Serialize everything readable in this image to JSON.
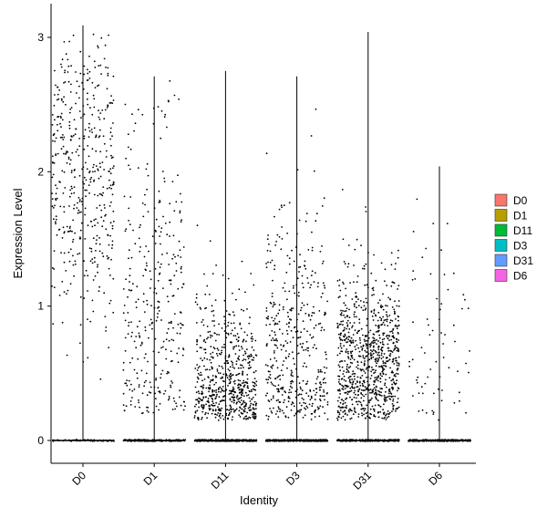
{
  "chart_data": {
    "type": "scatter",
    "subtype": "violin-jitter",
    "title": "",
    "xlabel": "Identity",
    "ylabel": "Expression Level",
    "categories": [
      "D0",
      "D1",
      "D11",
      "D3",
      "D31",
      "D6"
    ],
    "ylim": [
      -0.2,
      3.15
    ],
    "yticks": [
      0,
      1,
      2,
      3
    ],
    "grid": false,
    "legend": {
      "placement": "right",
      "entries": [
        {
          "label": "D0",
          "color": "#F8766D"
        },
        {
          "label": "D1",
          "color": "#B79F00"
        },
        {
          "label": "D11",
          "color": "#00BA38"
        },
        {
          "label": "D3",
          "color": "#00BFC4"
        },
        {
          "label": "D31",
          "color": "#619CFF"
        },
        {
          "label": "D6",
          "color": "#F564E3"
        }
      ]
    },
    "violin_max": [
      3.09,
      2.71,
      2.75,
      2.71,
      3.04,
      2.04
    ],
    "point_distribution": [
      {
        "name": "D0",
        "n_expressing": 460,
        "n_zero": 60,
        "low": 0.15,
        "high": 3.09,
        "center": 2.0,
        "spread": 0.55
      },
      {
        "name": "D1",
        "n_expressing": 330,
        "n_zero": 200,
        "low": 0.2,
        "high": 2.71,
        "center": 1.0,
        "spread": 0.75
      },
      {
        "name": "D11",
        "n_expressing": 650,
        "n_zero": 300,
        "low": 0.15,
        "high": 2.75,
        "center": 0.4,
        "spread": 0.35
      },
      {
        "name": "D3",
        "n_expressing": 450,
        "n_zero": 300,
        "low": 0.15,
        "high": 2.71,
        "center": 0.7,
        "spread": 0.55
      },
      {
        "name": "D31",
        "n_expressing": 900,
        "n_zero": 300,
        "low": 0.15,
        "high": 3.04,
        "center": 0.6,
        "spread": 0.35
      },
      {
        "name": "D6",
        "n_expressing": 70,
        "n_zero": 250,
        "low": 0.15,
        "high": 2.04,
        "center": 0.6,
        "spread": 0.5
      }
    ],
    "point_color": "#000000"
  }
}
